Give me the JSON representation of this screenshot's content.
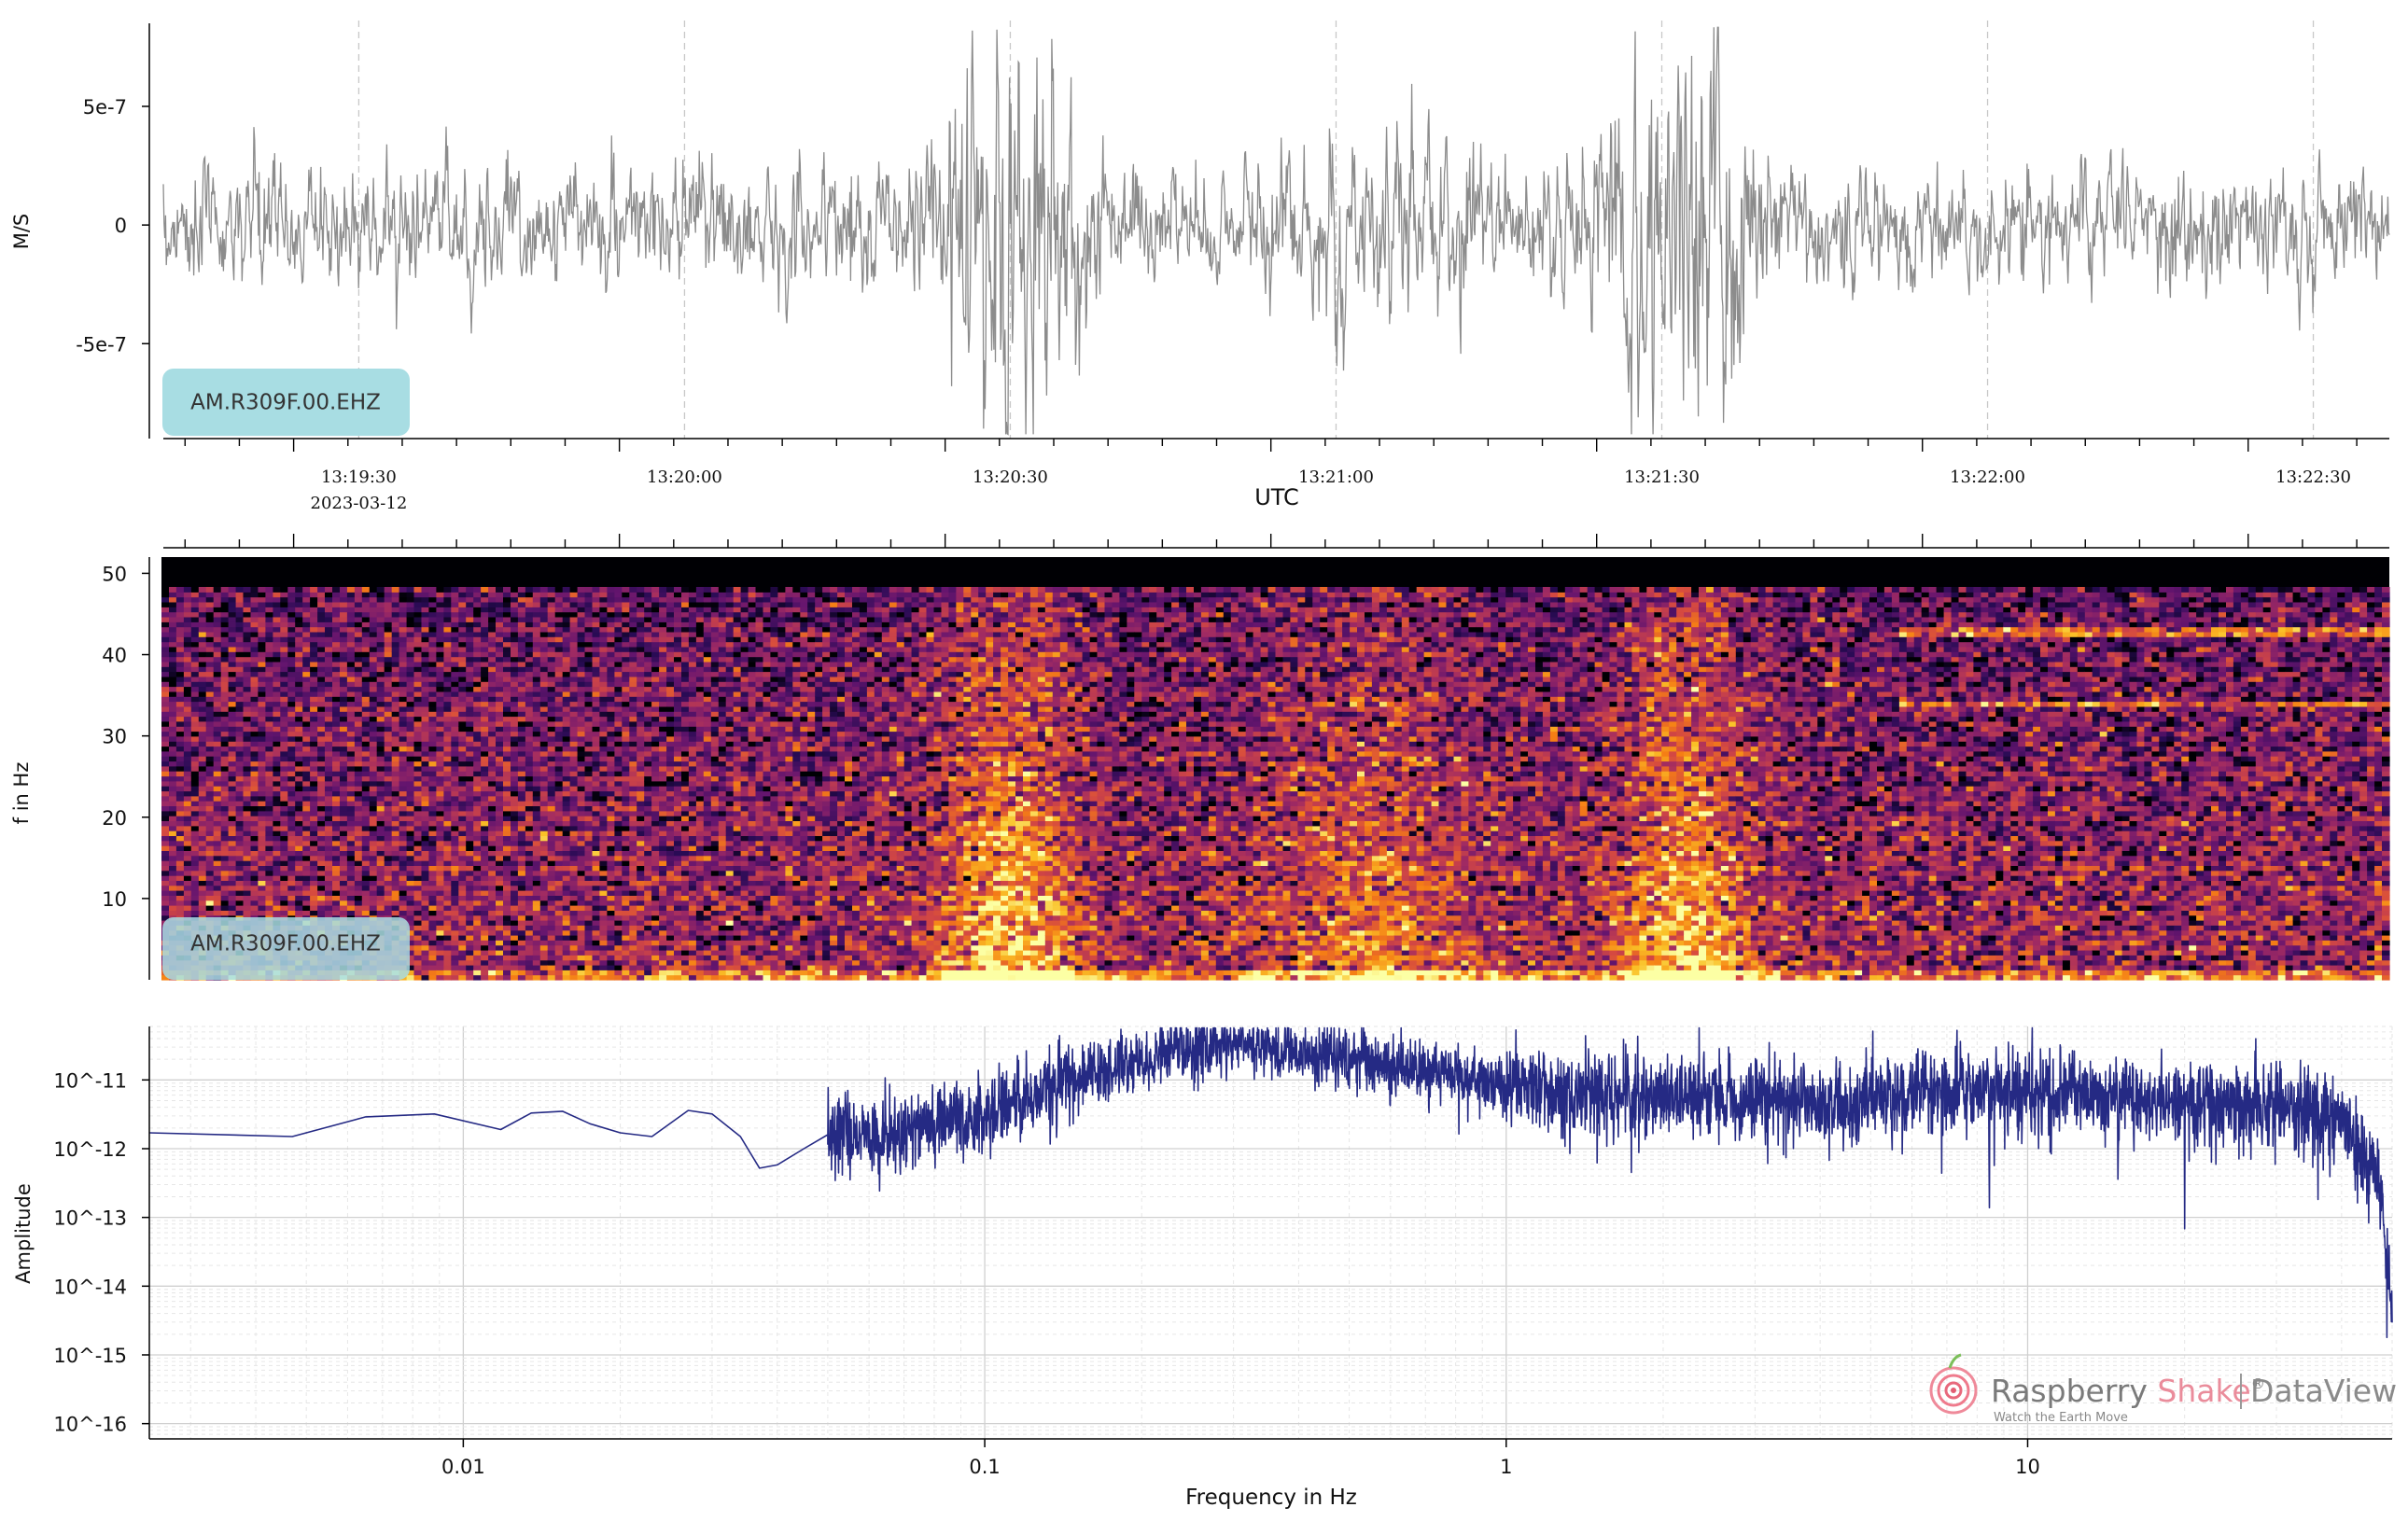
{
  "chart_data": [
    {
      "type": "line",
      "panel": "waveform",
      "ylabel": "M/S",
      "xlabel": "UTC",
      "station_label": "AM.R309F.00.EHZ",
      "x_start": "13:19:18",
      "x_end": "13:22:43",
      "ylim": [
        -9e-07,
        8.5e-07
      ],
      "yticks": [
        {
          "value": 5e-07,
          "label": "5e-7"
        },
        {
          "value": 0,
          "label": "0"
        },
        {
          "value": -5e-07,
          "label": "-5e-7"
        }
      ],
      "xticks": [
        {
          "seconds": 30,
          "label": "13:19:30",
          "date": "2023-03-12"
        },
        {
          "seconds": 60,
          "label": "13:20:00"
        },
        {
          "seconds": 90,
          "label": "13:20:30"
        },
        {
          "seconds": 120,
          "label": "13:21:00"
        },
        {
          "seconds": 150,
          "label": "13:21:30"
        },
        {
          "seconds": 180,
          "label": "13:22:00"
        },
        {
          "seconds": 210,
          "label": "13:22:30"
        }
      ],
      "noise_amplitude": 2.2e-07,
      "bursts": [
        {
          "center": 90,
          "width": 8,
          "amplitude": 8.5e-07
        },
        {
          "center": 152,
          "width": 8,
          "amplitude": 8.5e-07
        },
        {
          "center": 123,
          "width": 20,
          "amplitude": 3.5e-07
        }
      ],
      "grid": "vertical dashed at x ticks",
      "color": "#8c8c8c"
    },
    {
      "type": "heatmap",
      "panel": "spectrogram",
      "ylabel": "f in Hz",
      "station_label": "AM.R309F.00.EHZ",
      "ylim": [
        0,
        52
      ],
      "yticks": [
        10,
        20,
        30,
        40,
        50
      ],
      "colormap": "inferno",
      "energy_bursts_seconds": [
        90,
        123,
        152
      ],
      "persistent_lines_hz": [
        43,
        34
      ]
    },
    {
      "type": "line",
      "panel": "spectrum",
      "xlabel": "Frequency in Hz",
      "ylabel": "Amplitude",
      "xscale": "log",
      "yscale": "log",
      "xlim": [
        0.0025,
        50
      ],
      "ylim": [
        6e-17,
        6e-11
      ],
      "xticks": [
        {
          "value": 0.01,
          "label": "0.01"
        },
        {
          "value": 0.1,
          "label": "0.1"
        },
        {
          "value": 1,
          "label": "1"
        },
        {
          "value": 10,
          "label": "10"
        }
      ],
      "yticks": [
        {
          "value": 1e-11,
          "label": "10^-11"
        },
        {
          "value": 1e-12,
          "label": "10^-12"
        },
        {
          "value": 1e-13,
          "label": "10^-13"
        },
        {
          "value": 1e-14,
          "label": "10^-14"
        },
        {
          "value": 1e-15,
          "label": "10^-15"
        },
        {
          "value": 1e-16,
          "label": "10^-16"
        }
      ],
      "envelope": [
        [
          0.0025,
          1.7e-12
        ],
        [
          0.0047,
          1.5e-12
        ],
        [
          0.0065,
          2.9e-12
        ],
        [
          0.0088,
          3.2e-12
        ],
        [
          0.0118,
          1.9e-12
        ],
        [
          0.0135,
          3.3e-12
        ],
        [
          0.0155,
          3.5e-12
        ],
        [
          0.0175,
          2.3e-12
        ],
        [
          0.02,
          1.7e-12
        ],
        [
          0.023,
          1.5e-12
        ],
        [
          0.027,
          3.6e-12
        ],
        [
          0.03,
          3.2e-12
        ],
        [
          0.034,
          1.5e-12
        ],
        [
          0.037,
          5.2e-13
        ],
        [
          0.04,
          5.8e-13
        ],
        [
          0.045,
          1e-12
        ],
        [
          0.05,
          1.6e-12
        ],
        [
          0.06,
          1.4e-12
        ],
        [
          0.075,
          1.9e-12
        ],
        [
          0.1,
          3e-12
        ],
        [
          0.15,
          1.1e-11
        ],
        [
          0.2,
          2e-11
        ],
        [
          0.28,
          3.5e-11
        ],
        [
          0.35,
          2.8e-11
        ],
        [
          0.5,
          2e-11
        ],
        [
          0.8,
          1.2e-11
        ],
        [
          1.0,
          8e-12
        ],
        [
          2.0,
          6e-12
        ],
        [
          4.0,
          5e-12
        ],
        [
          7.0,
          7e-12
        ],
        [
          10.0,
          6e-12
        ],
        [
          20.0,
          5e-12
        ],
        [
          30.0,
          4e-12
        ],
        [
          40.0,
          2.5e-12
        ],
        [
          47.0,
          4e-13
        ],
        [
          50.0,
          5e-15
        ]
      ],
      "color": "#252a84",
      "grid": "major and minor"
    }
  ],
  "watermark": {
    "brand_first": "Raspberry",
    "brand_second": "Shake",
    "product": "DataView",
    "tagline": "Watch the Earth Move",
    "registered": "®"
  }
}
